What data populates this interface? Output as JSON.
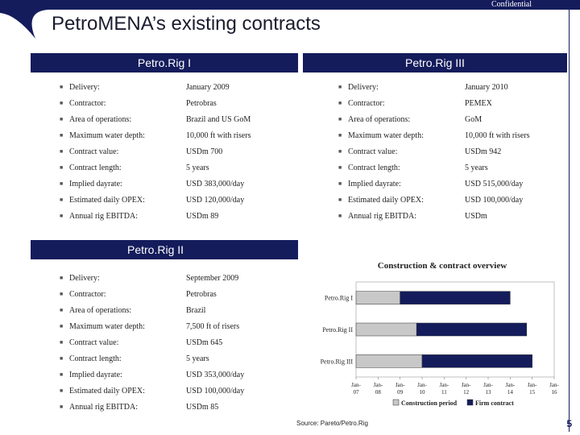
{
  "header": {
    "confidential": "Confidential",
    "title": "PetroMENA’s existing contracts"
  },
  "rig1": {
    "title": "Petro.Rig I",
    "rows": [
      {
        "label": "Delivery:",
        "value": "January 2009"
      },
      {
        "label": "Contractor:",
        "value": "Petrobras"
      },
      {
        "label": "Area of operations:",
        "value": "Brazil and US GoM"
      },
      {
        "label": "Maximum water depth:",
        "value": "10,000 ft with risers"
      },
      {
        "label": "Contract value:",
        "value": "USDm 700"
      },
      {
        "label": "Contract length:",
        "value": "5 years"
      },
      {
        "label": "Implied dayrate:",
        "value": "USD 383,000/day"
      },
      {
        "label": "Estimated daily OPEX:",
        "value": "USD 120,000/day"
      },
      {
        "label": "Annual rig EBITDA:",
        "value": "USDm 89"
      }
    ]
  },
  "rig3": {
    "title": "Petro.Rig III",
    "rows": [
      {
        "label": "Delivery:",
        "value": "January 2010"
      },
      {
        "label": "Contractor:",
        "value": "PEMEX"
      },
      {
        "label": "Area of operations:",
        "value": "GoM"
      },
      {
        "label": "Maximum water depth:",
        "value": "10,000 ft with risers"
      },
      {
        "label": "Contract value:",
        "value": "USDm 942"
      },
      {
        "label": "Contract length:",
        "value": "5 years"
      },
      {
        "label": "Implied dayrate:",
        "value": "USD 515,000/day"
      },
      {
        "label": "Estimated daily OPEX:",
        "value": "USD 100,000/day"
      },
      {
        "label": "Annual rig EBITDA:",
        "value": "USDm"
      }
    ]
  },
  "rig2": {
    "title": "Petro.Rig II",
    "rows": [
      {
        "label": "Delivery:",
        "value": "September 2009"
      },
      {
        "label": "Contractor:",
        "value": "Petrobras"
      },
      {
        "label": "Area of operations:",
        "value": "Brazil"
      },
      {
        "label": "Maximum water depth:",
        "value": "7,500 ft of risers"
      },
      {
        "label": "Contract value:",
        "value": "USDm 645"
      },
      {
        "label": "Contract length:",
        "value": "5 years"
      },
      {
        "label": "Implied dayrate:",
        "value": "USD 353,000/day"
      },
      {
        "label": "Estimated daily OPEX:",
        "value": "USD 100,000/day"
      },
      {
        "label": "Annual rig EBITDA:",
        "value": "USDm 85"
      }
    ]
  },
  "chart_data": {
    "type": "bar",
    "subtype": "gantt",
    "title": "Construction & contract overview",
    "categories": [
      "Petro.Rig I",
      "Petro.Rig II",
      "Petro.Rig III"
    ],
    "x_ticks": [
      "Jan-07",
      "Jan-08",
      "Jan-09",
      "Jan-10",
      "Jan-11",
      "Jan-12",
      "Jan-13",
      "Jan-14",
      "Jan-15",
      "Jan-16"
    ],
    "xlim": [
      2007,
      2016
    ],
    "series": [
      {
        "name": "Construction period",
        "color": "#c8c8c8",
        "ranges": [
          [
            2007.0,
            2009.0
          ],
          [
            2007.0,
            2009.75
          ],
          [
            2007.0,
            2010.0
          ]
        ]
      },
      {
        "name": "Firm contract",
        "color": "#141c5c",
        "ranges": [
          [
            2009.0,
            2014.0
          ],
          [
            2009.75,
            2014.75
          ],
          [
            2010.0,
            2015.0
          ]
        ]
      }
    ]
  },
  "footer": {
    "source": "Source: Pareto/Petro.Rig",
    "page": "5"
  },
  "colors": {
    "navy": "#141c5c",
    "grey": "#c8c8c8"
  }
}
